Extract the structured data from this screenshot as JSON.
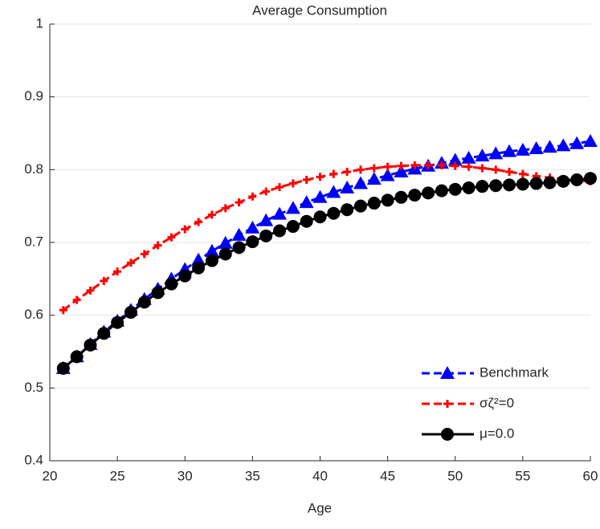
{
  "chart_data": {
    "type": "line",
    "title": "Average Consumption",
    "xlabel": "Age",
    "x": [
      21,
      22,
      23,
      24,
      25,
      26,
      27,
      28,
      29,
      30,
      31,
      32,
      33,
      34,
      35,
      36,
      37,
      38,
      39,
      40,
      41,
      42,
      43,
      44,
      45,
      46,
      47,
      48,
      49,
      50,
      51,
      52,
      53,
      54,
      55,
      56,
      57,
      58,
      59,
      60
    ],
    "series": [
      {
        "name": "Benchmark",
        "color": "#0000ff",
        "marker": "triangle",
        "dash": true,
        "values": [
          0.527,
          0.543,
          0.56,
          0.577,
          0.592,
          0.607,
          0.622,
          0.636,
          0.65,
          0.663,
          0.676,
          0.688,
          0.699,
          0.71,
          0.72,
          0.73,
          0.739,
          0.747,
          0.755,
          0.762,
          0.769,
          0.775,
          0.781,
          0.787,
          0.792,
          0.797,
          0.801,
          0.805,
          0.809,
          0.813,
          0.816,
          0.819,
          0.822,
          0.825,
          0.827,
          0.829,
          0.831,
          0.833,
          0.836,
          0.839
        ]
      },
      {
        "name": "σζ²=0",
        "color": "#ff0000",
        "marker": "plus",
        "dash": true,
        "values": [
          0.607,
          0.621,
          0.634,
          0.647,
          0.66,
          0.672,
          0.684,
          0.696,
          0.707,
          0.718,
          0.728,
          0.738,
          0.747,
          0.755,
          0.763,
          0.77,
          0.776,
          0.781,
          0.786,
          0.79,
          0.794,
          0.797,
          0.8,
          0.802,
          0.804,
          0.805,
          0.806,
          0.806,
          0.806,
          0.805,
          0.804,
          0.802,
          0.8,
          0.797,
          0.794,
          0.791,
          0.789,
          0.787,
          0.785,
          0.784
        ]
      },
      {
        "name": "μ=0.0",
        "color": "#000000",
        "marker": "circle",
        "dash": false,
        "values": [
          0.527,
          0.543,
          0.559,
          0.575,
          0.59,
          0.604,
          0.618,
          0.631,
          0.643,
          0.654,
          0.665,
          0.675,
          0.684,
          0.693,
          0.701,
          0.709,
          0.716,
          0.722,
          0.729,
          0.735,
          0.74,
          0.745,
          0.75,
          0.754,
          0.758,
          0.762,
          0.765,
          0.768,
          0.771,
          0.773,
          0.775,
          0.777,
          0.778,
          0.779,
          0.78,
          0.781,
          0.782,
          0.784,
          0.786,
          0.788
        ]
      }
    ],
    "xlim": [
      20,
      60
    ],
    "xticks": [
      20,
      25,
      30,
      35,
      40,
      45,
      50,
      55,
      60
    ],
    "ylim": [
      0.4,
      1
    ],
    "yticks": [
      0.4,
      0.5,
      0.6,
      0.7,
      0.8,
      0.9,
      1
    ],
    "grid": true,
    "legend": "lower right"
  }
}
